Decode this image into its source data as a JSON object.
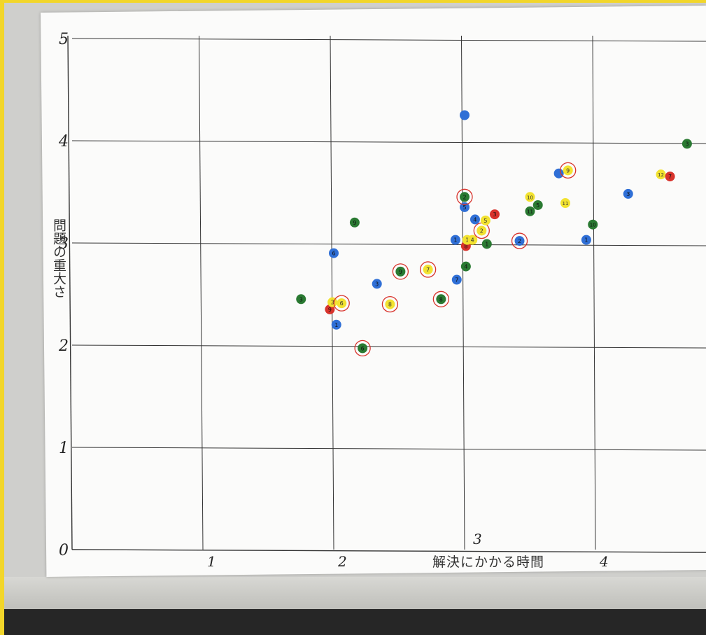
{
  "chart_data": {
    "type": "scatter",
    "xlabel": "解決にかかる時間",
    "ylabel": "問題の重大さ",
    "x_ticks": [
      "0",
      "1",
      "2",
      "3",
      "4"
    ],
    "y_ticks": [
      "0",
      "1",
      "2",
      "3",
      "4",
      "5"
    ],
    "xlim": [
      0,
      5
    ],
    "ylim": [
      0,
      5
    ],
    "grid": true,
    "colors": {
      "blue": "#2f6fd6",
      "green": "#2a7a32",
      "yellow": "#f2e230",
      "red": "#d8332c"
    },
    "points": [
      {
        "x": 3.0,
        "y": 4.25,
        "color": "blue",
        "label": "",
        "circled": false
      },
      {
        "x": 1.75,
        "y": 2.45,
        "color": "green",
        "label": "3",
        "circled": false
      },
      {
        "x": 1.97,
        "y": 2.35,
        "color": "red",
        "label": "9",
        "circled": false
      },
      {
        "x": 1.99,
        "y": 2.42,
        "color": "yellow",
        "label": "3",
        "circled": false
      },
      {
        "x": 2.06,
        "y": 2.41,
        "color": "yellow",
        "label": "6",
        "circled": true
      },
      {
        "x": 2.02,
        "y": 2.2,
        "color": "blue",
        "label": "1",
        "circled": false
      },
      {
        "x": 2.0,
        "y": 2.9,
        "color": "blue",
        "label": "6",
        "circled": false
      },
      {
        "x": 2.16,
        "y": 3.2,
        "color": "green",
        "label": "9",
        "circled": false
      },
      {
        "x": 2.22,
        "y": 1.97,
        "color": "green",
        "label": "6",
        "circled": true
      },
      {
        "x": 2.33,
        "y": 2.6,
        "color": "blue",
        "label": "3",
        "circled": false
      },
      {
        "x": 2.43,
        "y": 2.4,
        "color": "yellow",
        "label": "8",
        "circled": true
      },
      {
        "x": 2.51,
        "y": 2.72,
        "color": "green",
        "label": "9",
        "circled": true
      },
      {
        "x": 2.72,
        "y": 2.74,
        "color": "yellow",
        "label": "7",
        "circled": true
      },
      {
        "x": 2.82,
        "y": 2.45,
        "color": "green",
        "label": "8",
        "circled": true
      },
      {
        "x": 2.94,
        "y": 2.64,
        "color": "blue",
        "label": "7",
        "circled": false
      },
      {
        "x": 2.93,
        "y": 3.03,
        "color": "blue",
        "label": "1",
        "circled": false
      },
      {
        "x": 3.01,
        "y": 2.97,
        "color": "red",
        "label": "8",
        "circled": false
      },
      {
        "x": 3.02,
        "y": 3.03,
        "color": "yellow",
        "label": "1",
        "circled": false
      },
      {
        "x": 3.06,
        "y": 3.03,
        "color": "yellow",
        "label": "4",
        "circled": false
      },
      {
        "x": 3.01,
        "y": 2.77,
        "color": "green",
        "label": "4",
        "circled": false
      },
      {
        "x": 3.13,
        "y": 3.12,
        "color": "yellow",
        "label": "2",
        "circled": true
      },
      {
        "x": 3.17,
        "y": 2.99,
        "color": "green",
        "label": "1",
        "circled": false
      },
      {
        "x": 3.16,
        "y": 3.22,
        "color": "yellow",
        "label": "5",
        "circled": false
      },
      {
        "x": 3.08,
        "y": 3.23,
        "color": "blue",
        "label": "4",
        "circled": false
      },
      {
        "x": 3.23,
        "y": 3.28,
        "color": "red",
        "label": "3",
        "circled": false
      },
      {
        "x": 3.0,
        "y": 3.35,
        "color": "blue",
        "label": "5",
        "circled": false
      },
      {
        "x": 3.0,
        "y": 3.45,
        "color": "green",
        "label": "2",
        "circled": true
      },
      {
        "x": 3.42,
        "y": 3.02,
        "color": "blue",
        "label": "2",
        "circled": true
      },
      {
        "x": 3.5,
        "y": 3.31,
        "color": "green",
        "label": "11",
        "circled": false
      },
      {
        "x": 3.5,
        "y": 3.45,
        "color": "yellow",
        "label": "10",
        "circled": false
      },
      {
        "x": 3.56,
        "y": 3.37,
        "color": "green",
        "label": "5",
        "circled": false
      },
      {
        "x": 3.77,
        "y": 3.39,
        "color": "yellow",
        "label": "11",
        "circled": false
      },
      {
        "x": 3.72,
        "y": 3.68,
        "color": "blue",
        "label": "",
        "circled": false
      },
      {
        "x": 3.79,
        "y": 3.71,
        "color": "yellow",
        "label": "9",
        "circled": true
      },
      {
        "x": 3.98,
        "y": 3.18,
        "color": "green",
        "label": "10",
        "circled": false
      },
      {
        "x": 3.93,
        "y": 3.03,
        "color": "blue",
        "label": "1",
        "circled": false
      },
      {
        "x": 4.25,
        "y": 3.48,
        "color": "blue",
        "label": "3",
        "circled": false
      },
      {
        "x": 4.5,
        "y": 3.67,
        "color": "yellow",
        "label": "12",
        "circled": false
      },
      {
        "x": 4.57,
        "y": 3.65,
        "color": "red",
        "label": "7",
        "circled": false
      },
      {
        "x": 4.7,
        "y": 3.97,
        "color": "green",
        "label": "3",
        "circled": false
      }
    ]
  }
}
